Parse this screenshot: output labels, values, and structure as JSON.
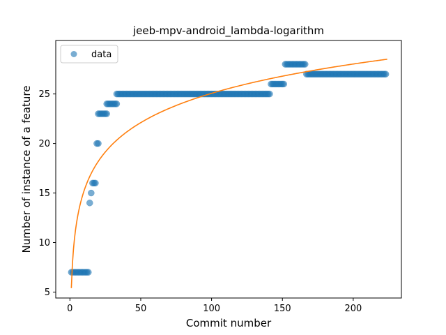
{
  "chart_data": {
    "type": "scatter",
    "title": "jeeb-mpv-android_lambda-logarithm",
    "xlabel": "Commit number",
    "ylabel": "Number of instance of a feature",
    "xlim": [
      -10,
      234
    ],
    "ylim": [
      4.4,
      30.4
    ],
    "xticks": [
      0,
      50,
      100,
      150,
      200
    ],
    "yticks": [
      5,
      10,
      15,
      20,
      25
    ],
    "grid": false,
    "legend_position": "upper-left",
    "series": [
      {
        "name": "data",
        "kind": "points",
        "color": "#1f77b4",
        "segments": [
          {
            "x_from": 1,
            "x_to": 13,
            "y": 7
          },
          {
            "x_from": 14,
            "x_to": 14,
            "y": 14
          },
          {
            "x_from": 15,
            "x_to": 15,
            "y": 15
          },
          {
            "x_from": 16,
            "x_to": 18,
            "y": 16
          },
          {
            "x_from": 19,
            "x_to": 20,
            "y": 20
          },
          {
            "x_from": 20,
            "x_to": 26,
            "y": 23
          },
          {
            "x_from": 26,
            "x_to": 33,
            "y": 24
          },
          {
            "x_from": 33,
            "x_to": 141,
            "y": 25
          },
          {
            "x_from": 142,
            "x_to": 151,
            "y": 26
          },
          {
            "x_from": 152,
            "x_to": 166,
            "y": 28
          },
          {
            "x_from": 167,
            "x_to": 223,
            "y": 27
          }
        ]
      },
      {
        "kind": "fit-line",
        "color": "#ff7f0e",
        "model": "logarithmic",
        "a": 5.4,
        "b": 4.27,
        "x_from": 1,
        "x_to": 224
      }
    ]
  }
}
